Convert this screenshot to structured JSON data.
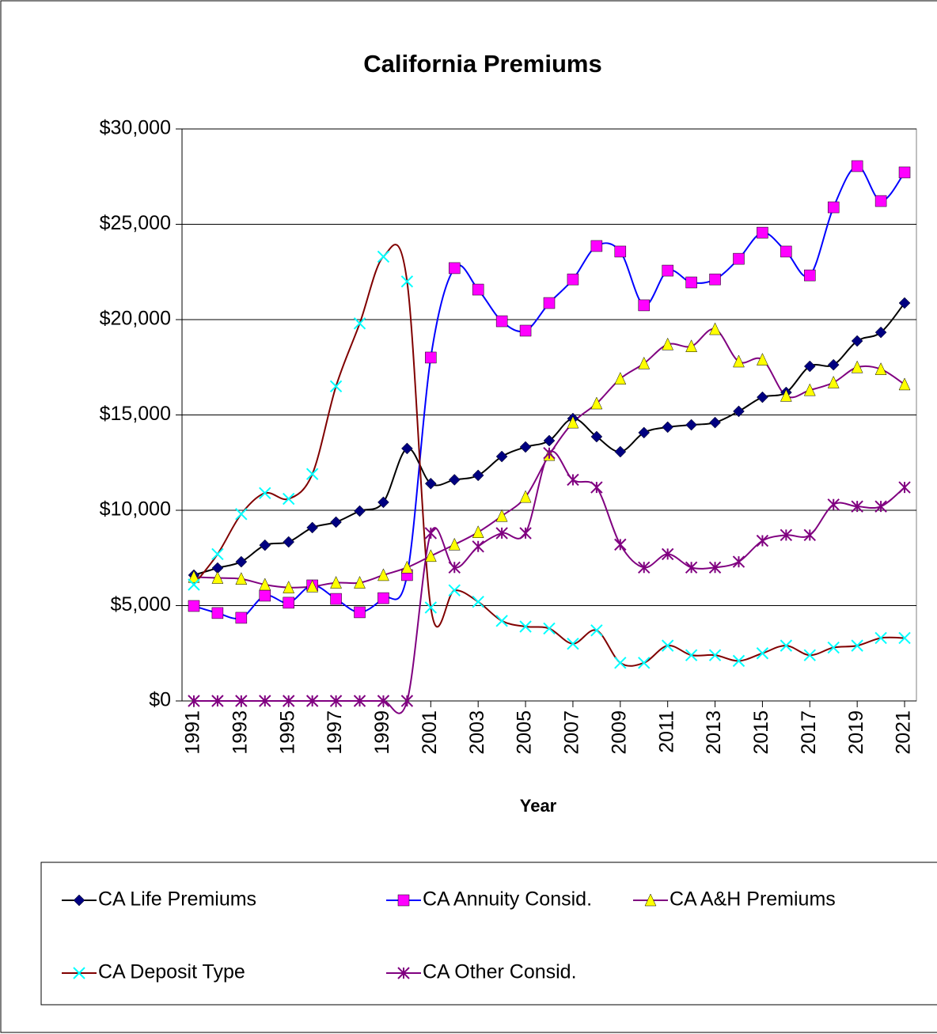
{
  "chart_data": {
    "type": "line",
    "title": "California Premiums",
    "xlabel": "Year",
    "x": [
      1991,
      1992,
      1993,
      1994,
      1995,
      1996,
      1997,
      1998,
      1999,
      2000,
      2001,
      2002,
      2003,
      2004,
      2005,
      2006,
      2007,
      2008,
      2009,
      2010,
      2011,
      2012,
      2013,
      2014,
      2015,
      2016,
      2017,
      2018,
      2019,
      2020,
      2021
    ],
    "xlim": [
      1990.5,
      2021.5
    ],
    "xticks": [
      1991,
      1993,
      1995,
      1997,
      1999,
      2001,
      2003,
      2005,
      2007,
      2009,
      2011,
      2013,
      2015,
      2017,
      2019,
      2021
    ],
    "ylim": [
      0,
      30000
    ],
    "yticks": [
      {
        "value": 0,
        "label": "$0"
      },
      {
        "value": 5000,
        "label": "$5,000"
      },
      {
        "value": 10000,
        "label": "$10,000"
      },
      {
        "value": 15000,
        "label": "$15,000"
      },
      {
        "value": 20000,
        "label": "$20,000"
      },
      {
        "value": 25000,
        "label": "$25,000"
      },
      {
        "value": 30000,
        "label": "$30,000"
      }
    ],
    "grid": true,
    "legend": "bottom",
    "series": [
      {
        "name": "CA Life Premiums",
        "color": "#000000",
        "marker_color": "#000080",
        "marker": "diamond",
        "values": [
          6600,
          6970,
          7300,
          8170,
          8340,
          9090,
          9380,
          9960,
          10420,
          13240,
          11400,
          11600,
          11830,
          12820,
          13320,
          13650,
          14810,
          13860,
          13070,
          14070,
          14360,
          14480,
          14600,
          15190,
          15930,
          16180,
          17550,
          17630,
          18880,
          19330,
          20870
        ]
      },
      {
        "name": "CA Annuity Consid.",
        "color": "#0000ff",
        "marker_color": "#ff00ff",
        "marker": "square",
        "values": [
          4980,
          4610,
          4360,
          5520,
          5150,
          6060,
          5350,
          4650,
          5390,
          6600,
          18010,
          22700,
          21575,
          19915,
          19420,
          20870,
          22110,
          23860,
          23570,
          20750,
          22570,
          21950,
          22110,
          23190,
          24560,
          23570,
          22320,
          25890,
          28050,
          26220,
          27720
        ]
      },
      {
        "name": "CA A&H Premiums",
        "color": "#800080",
        "marker_color": "#ffff00",
        "marker": "triangle",
        "values": [
          6500,
          6450,
          6400,
          6100,
          5950,
          6000,
          6200,
          6200,
          6600,
          7000,
          7600,
          8200,
          8850,
          9700,
          10700,
          12900,
          14600,
          15600,
          16900,
          17700,
          18700,
          18600,
          19500,
          17800,
          17900,
          16000,
          16300,
          16700,
          17500,
          17400,
          16600
        ]
      },
      {
        "name": "CA Deposit Type",
        "color": "#800000",
        "marker_color": "#00ffff",
        "marker": "x",
        "values": [
          6100,
          7700,
          9800,
          10900,
          10600,
          11900,
          16500,
          19800,
          23300,
          22000,
          4900,
          5800,
          5200,
          4200,
          3900,
          3800,
          3000,
          3700,
          2000,
          2000,
          2900,
          2400,
          2400,
          2100,
          2500,
          2900,
          2400,
          2800,
          2900,
          3300,
          3300
        ]
      },
      {
        "name": "CA Other Consid.",
        "color": "#800080",
        "marker_color": "#800080",
        "marker": "star",
        "values": [
          0,
          0,
          0,
          0,
          0,
          0,
          0,
          0,
          0,
          0,
          8800,
          7000,
          8100,
          8800,
          8800,
          13000,
          11600,
          11200,
          8200,
          7000,
          7700,
          7000,
          7000,
          7300,
          8400,
          8700,
          8700,
          10300,
          10200,
          10200,
          11200
        ]
      }
    ]
  }
}
